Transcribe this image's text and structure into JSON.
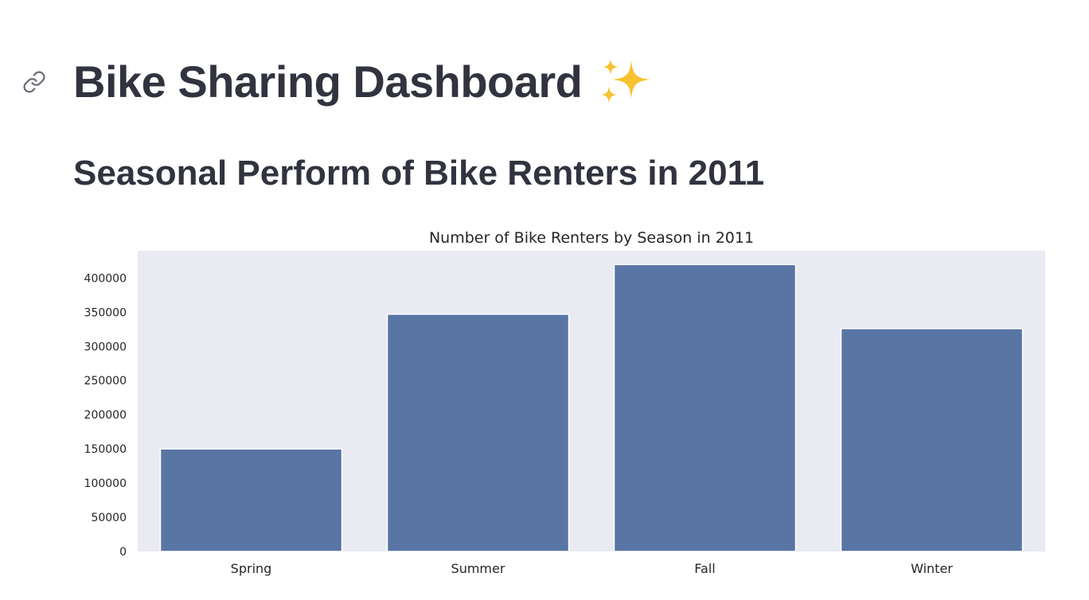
{
  "header": {
    "title": "Bike Sharing Dashboard",
    "title_icon": "sparkles-icon",
    "link_icon": "link-icon"
  },
  "section": {
    "subtitle": "Seasonal Perform of Bike Renters in 2011"
  },
  "colors": {
    "bar": "#5975a4",
    "plot_bg": "#eaeaf2",
    "text": "#31333f"
  },
  "chart_data": {
    "type": "bar",
    "title": "Number of Bike Renters by Season in 2011",
    "xlabel": "",
    "ylabel": "",
    "categories": [
      "Spring",
      "Summer",
      "Fall",
      "Winter"
    ],
    "values": [
      150000,
      347000,
      419700,
      326000
    ],
    "ylim": [
      0,
      440000
    ],
    "yticks": [
      0,
      50000,
      100000,
      150000,
      200000,
      250000,
      300000,
      350000,
      400000
    ],
    "grid": false,
    "legend": "none"
  }
}
